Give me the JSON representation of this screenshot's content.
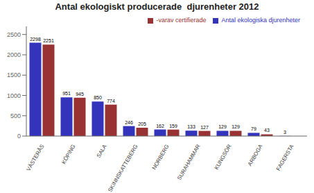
{
  "chart_data": {
    "type": "bar",
    "title": "Antal ekologiskt producerade  djurenheter 2012",
    "categories": [
      "VÄSTERÅS",
      "KÖPING",
      "SALA",
      "SKINNSKATTEBERG",
      "NORBERG",
      "SURAHAMMAR",
      "KUNGSÖR",
      "ARBOGA",
      "FAGERSTA"
    ],
    "series": [
      {
        "name": "Antal ekologiska djurenheter",
        "color": "#3333bb",
        "values": [
          2298,
          951,
          850,
          246,
          162,
          133,
          129,
          79,
          3
        ]
      },
      {
        "name": "-varav certifierade",
        "color": "#993333",
        "values": [
          2251,
          945,
          774,
          205,
          159,
          127,
          129,
          43,
          0
        ],
        "value_labels": [
          "2251",
          "945",
          "774",
          "205",
          "159",
          "127",
          "129",
          "43",
          null
        ]
      }
    ],
    "ylim": [
      0,
      2700
    ],
    "yticks": [
      0,
      500,
      1000,
      1500,
      2000,
      2500
    ],
    "grid": false,
    "legend": "upper right",
    "data_labels": true
  }
}
